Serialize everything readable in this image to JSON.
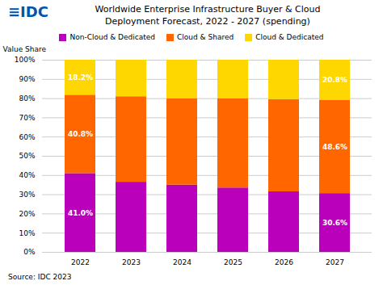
{
  "chart_data": {
    "type": "bar",
    "stacked": true,
    "title": "Worldwide Enterprise Infrastructure Buyer & Cloud",
    "subtitle": "Deployment Forecast, 2022 - 2027 (spending)",
    "annotations": [
      "≡IDC",
      "Source: IDC 2023"
    ],
    "ylabel": "Value Share",
    "categories": [
      "2022",
      "2023",
      "2024",
      "2025",
      "2026",
      "2027"
    ],
    "series": [
      {
        "name": "Non-Cloud & Dedicated",
        "color": "#BB00BB",
        "values": [
          41.0,
          36.5,
          35.0,
          33.5,
          31.5,
          30.6
        ],
        "value_labels": [
          "41.0%",
          null,
          null,
          null,
          null,
          "30.6%"
        ]
      },
      {
        "name": "Cloud & Shared",
        "color": "#FF6600",
        "values": [
          40.8,
          44.5,
          45.0,
          46.5,
          48.0,
          48.6
        ],
        "value_labels": [
          "40.8%",
          null,
          null,
          null,
          null,
          "48.6%"
        ]
      },
      {
        "name": "Cloud & Dedicated",
        "color": "#FFD700",
        "values": [
          18.2,
          19.0,
          20.0,
          20.0,
          20.5,
          20.8
        ],
        "value_labels": [
          "18.2%",
          null,
          null,
          null,
          null,
          "20.8%"
        ]
      }
    ],
    "ylim": [
      0,
      100
    ],
    "yticks": [
      {
        "value": 0,
        "label": "0%"
      },
      {
        "value": 10,
        "label": "10%"
      },
      {
        "value": 20,
        "label": "20%"
      },
      {
        "value": 30,
        "label": "30%"
      },
      {
        "value": 40,
        "label": "40%"
      },
      {
        "value": 50,
        "label": "50%"
      },
      {
        "value": 60,
        "label": "60%"
      },
      {
        "value": 70,
        "label": "70%"
      },
      {
        "value": 80,
        "label": "80%"
      },
      {
        "value": 90,
        "label": "90%"
      },
      {
        "value": 100,
        "label": "100%"
      }
    ],
    "grid": true,
    "legend": "top"
  }
}
